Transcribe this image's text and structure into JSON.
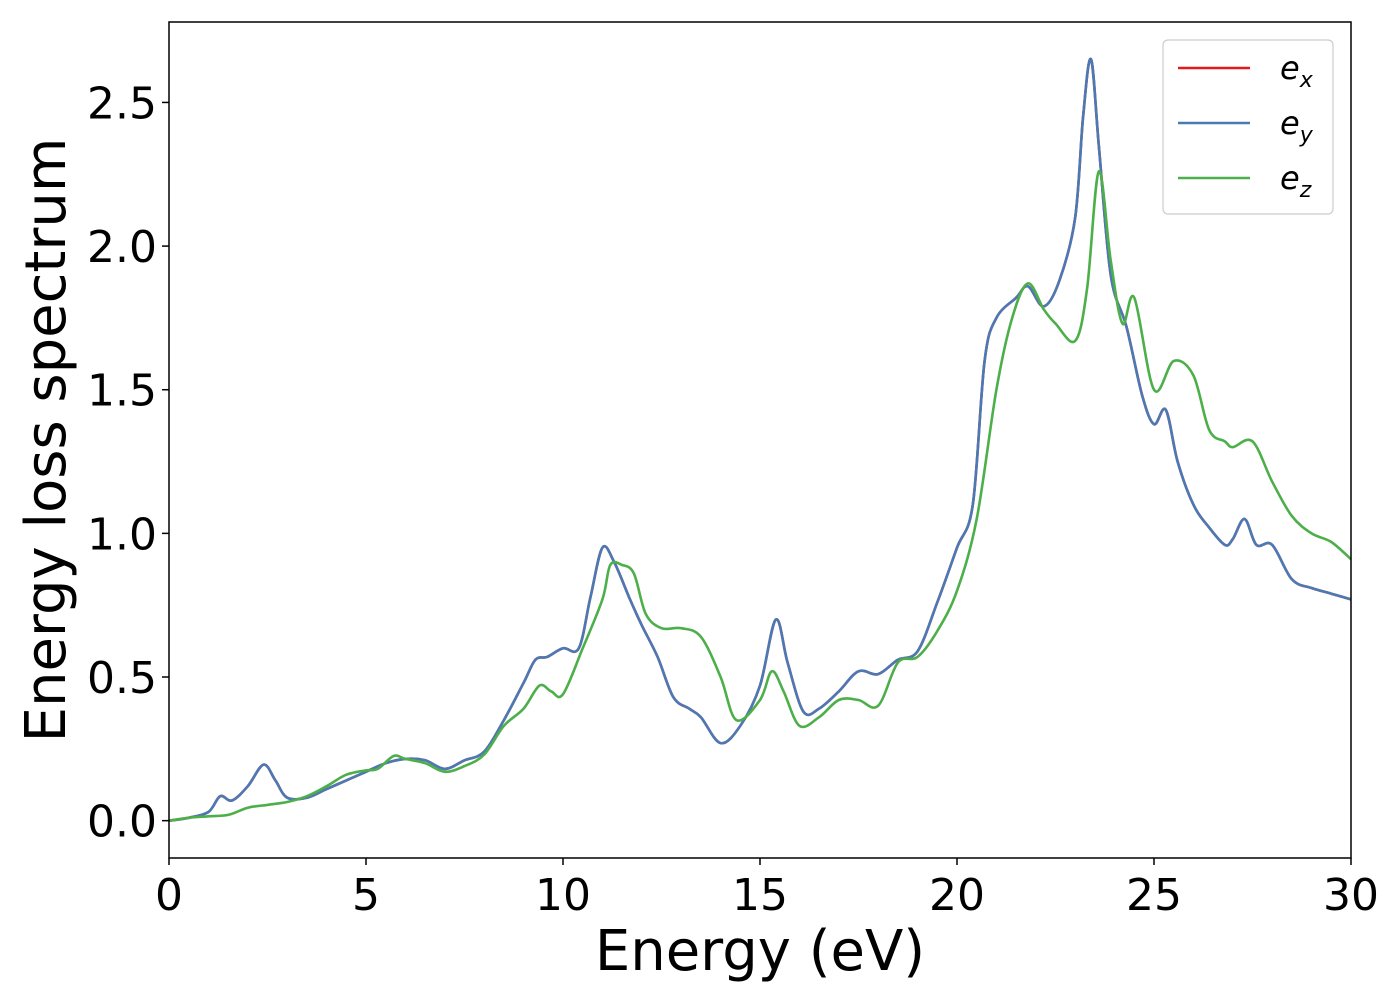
{
  "chart_data": {
    "type": "line",
    "xlabel": "Energy (eV)",
    "ylabel": "Energy loss spectrum",
    "xlim": [
      0,
      30
    ],
    "ylim": [
      -0.13,
      2.78
    ],
    "x_ticks": [
      0,
      5,
      10,
      15,
      20,
      25,
      30
    ],
    "x_tick_labels": [
      "0",
      "5",
      "10",
      "15",
      "20",
      "25",
      "30"
    ],
    "y_ticks": [
      0.0,
      0.5,
      1.0,
      1.5,
      2.0,
      2.5
    ],
    "y_tick_labels": [
      "0.0",
      "0.5",
      "1.0",
      "1.5",
      "2.0",
      "2.5"
    ],
    "grid": false,
    "legend_position": "top-right",
    "series": [
      {
        "name": "e_x",
        "legend_base": "e",
        "legend_sub": "x",
        "color": "#e41a1c",
        "points": [
          [
            0,
            0.0
          ],
          [
            0.5,
            0.01
          ],
          [
            1.0,
            0.03
          ],
          [
            1.3,
            0.085
          ],
          [
            1.6,
            0.07
          ],
          [
            2.0,
            0.12
          ],
          [
            2.4,
            0.195
          ],
          [
            2.7,
            0.14
          ],
          [
            3.0,
            0.08
          ],
          [
            3.5,
            0.08
          ],
          [
            4.0,
            0.11
          ],
          [
            4.5,
            0.14
          ],
          [
            5.0,
            0.17
          ],
          [
            5.5,
            0.2
          ],
          [
            6.0,
            0.215
          ],
          [
            6.5,
            0.21
          ],
          [
            7.0,
            0.18
          ],
          [
            7.5,
            0.21
          ],
          [
            8.0,
            0.24
          ],
          [
            8.5,
            0.35
          ],
          [
            9.0,
            0.48
          ],
          [
            9.3,
            0.56
          ],
          [
            9.6,
            0.57
          ],
          [
            10.0,
            0.6
          ],
          [
            10.4,
            0.6
          ],
          [
            10.7,
            0.78
          ],
          [
            11.0,
            0.95
          ],
          [
            11.3,
            0.9
          ],
          [
            11.7,
            0.77
          ],
          [
            12.0,
            0.68
          ],
          [
            12.4,
            0.57
          ],
          [
            12.8,
            0.43
          ],
          [
            13.2,
            0.39
          ],
          [
            13.5,
            0.36
          ],
          [
            14.0,
            0.27
          ],
          [
            14.5,
            0.33
          ],
          [
            15.0,
            0.47
          ],
          [
            15.4,
            0.7
          ],
          [
            15.7,
            0.55
          ],
          [
            16.1,
            0.38
          ],
          [
            16.5,
            0.39
          ],
          [
            17.0,
            0.45
          ],
          [
            17.5,
            0.52
          ],
          [
            18.0,
            0.51
          ],
          [
            18.5,
            0.56
          ],
          [
            19.0,
            0.59
          ],
          [
            19.5,
            0.76
          ],
          [
            20.0,
            0.95
          ],
          [
            20.4,
            1.1
          ],
          [
            20.7,
            1.6
          ],
          [
            21.0,
            1.75
          ],
          [
            21.5,
            1.82
          ],
          [
            21.8,
            1.86
          ],
          [
            22.2,
            1.79
          ],
          [
            22.6,
            1.88
          ],
          [
            23.0,
            2.1
          ],
          [
            23.2,
            2.45
          ],
          [
            23.4,
            2.65
          ],
          [
            23.6,
            2.35
          ],
          [
            23.9,
            1.9
          ],
          [
            24.3,
            1.72
          ],
          [
            24.7,
            1.48
          ],
          [
            25.0,
            1.38
          ],
          [
            25.3,
            1.43
          ],
          [
            25.6,
            1.25
          ],
          [
            26.0,
            1.1
          ],
          [
            26.4,
            1.02
          ],
          [
            26.8,
            0.96
          ],
          [
            27.0,
            0.98
          ],
          [
            27.3,
            1.05
          ],
          [
            27.6,
            0.96
          ],
          [
            28.0,
            0.96
          ],
          [
            28.5,
            0.84
          ],
          [
            29.0,
            0.81
          ],
          [
            29.5,
            0.79
          ],
          [
            30.0,
            0.77
          ]
        ]
      },
      {
        "name": "e_y",
        "legend_base": "e",
        "legend_sub": "y",
        "color": "#4a7ab5",
        "points": [
          [
            0,
            0.0
          ],
          [
            0.5,
            0.01
          ],
          [
            1.0,
            0.03
          ],
          [
            1.3,
            0.085
          ],
          [
            1.6,
            0.07
          ],
          [
            2.0,
            0.12
          ],
          [
            2.4,
            0.195
          ],
          [
            2.7,
            0.14
          ],
          [
            3.0,
            0.08
          ],
          [
            3.5,
            0.08
          ],
          [
            4.0,
            0.11
          ],
          [
            4.5,
            0.14
          ],
          [
            5.0,
            0.17
          ],
          [
            5.5,
            0.2
          ],
          [
            6.0,
            0.215
          ],
          [
            6.5,
            0.21
          ],
          [
            7.0,
            0.18
          ],
          [
            7.5,
            0.21
          ],
          [
            8.0,
            0.24
          ],
          [
            8.5,
            0.35
          ],
          [
            9.0,
            0.48
          ],
          [
            9.3,
            0.56
          ],
          [
            9.6,
            0.57
          ],
          [
            10.0,
            0.6
          ],
          [
            10.4,
            0.6
          ],
          [
            10.7,
            0.78
          ],
          [
            11.0,
            0.95
          ],
          [
            11.3,
            0.9
          ],
          [
            11.7,
            0.77
          ],
          [
            12.0,
            0.68
          ],
          [
            12.4,
            0.57
          ],
          [
            12.8,
            0.43
          ],
          [
            13.2,
            0.39
          ],
          [
            13.5,
            0.36
          ],
          [
            14.0,
            0.27
          ],
          [
            14.5,
            0.33
          ],
          [
            15.0,
            0.47
          ],
          [
            15.4,
            0.7
          ],
          [
            15.7,
            0.55
          ],
          [
            16.1,
            0.38
          ],
          [
            16.5,
            0.39
          ],
          [
            17.0,
            0.45
          ],
          [
            17.5,
            0.52
          ],
          [
            18.0,
            0.51
          ],
          [
            18.5,
            0.56
          ],
          [
            19.0,
            0.59
          ],
          [
            19.5,
            0.76
          ],
          [
            20.0,
            0.95
          ],
          [
            20.4,
            1.1
          ],
          [
            20.7,
            1.6
          ],
          [
            21.0,
            1.75
          ],
          [
            21.5,
            1.82
          ],
          [
            21.8,
            1.86
          ],
          [
            22.2,
            1.79
          ],
          [
            22.6,
            1.88
          ],
          [
            23.0,
            2.1
          ],
          [
            23.2,
            2.45
          ],
          [
            23.4,
            2.65
          ],
          [
            23.6,
            2.35
          ],
          [
            23.9,
            1.9
          ],
          [
            24.3,
            1.72
          ],
          [
            24.7,
            1.48
          ],
          [
            25.0,
            1.38
          ],
          [
            25.3,
            1.43
          ],
          [
            25.6,
            1.25
          ],
          [
            26.0,
            1.1
          ],
          [
            26.4,
            1.02
          ],
          [
            26.8,
            0.96
          ],
          [
            27.0,
            0.98
          ],
          [
            27.3,
            1.05
          ],
          [
            27.6,
            0.96
          ],
          [
            28.0,
            0.96
          ],
          [
            28.5,
            0.84
          ],
          [
            29.0,
            0.81
          ],
          [
            29.5,
            0.79
          ],
          [
            30.0,
            0.77
          ]
        ]
      },
      {
        "name": "e_z",
        "legend_base": "e",
        "legend_sub": "z",
        "color": "#4daf4a",
        "points": [
          [
            0,
            0.0
          ],
          [
            0.5,
            0.01
          ],
          [
            1.0,
            0.015
          ],
          [
            1.5,
            0.02
          ],
          [
            2.0,
            0.045
          ],
          [
            2.5,
            0.055
          ],
          [
            3.0,
            0.065
          ],
          [
            3.5,
            0.085
          ],
          [
            4.0,
            0.12
          ],
          [
            4.5,
            0.16
          ],
          [
            5.0,
            0.175
          ],
          [
            5.3,
            0.18
          ],
          [
            5.7,
            0.225
          ],
          [
            6.0,
            0.215
          ],
          [
            6.5,
            0.2
          ],
          [
            7.0,
            0.17
          ],
          [
            7.5,
            0.19
          ],
          [
            8.0,
            0.23
          ],
          [
            8.5,
            0.33
          ],
          [
            9.0,
            0.39
          ],
          [
            9.4,
            0.47
          ],
          [
            9.7,
            0.45
          ],
          [
            10.0,
            0.44
          ],
          [
            10.5,
            0.6
          ],
          [
            11.0,
            0.77
          ],
          [
            11.2,
            0.89
          ],
          [
            11.5,
            0.89
          ],
          [
            11.8,
            0.86
          ],
          [
            12.1,
            0.72
          ],
          [
            12.5,
            0.67
          ],
          [
            13.0,
            0.67
          ],
          [
            13.5,
            0.64
          ],
          [
            14.0,
            0.5
          ],
          [
            14.4,
            0.35
          ],
          [
            15.0,
            0.42
          ],
          [
            15.3,
            0.52
          ],
          [
            15.6,
            0.45
          ],
          [
            16.0,
            0.33
          ],
          [
            16.5,
            0.36
          ],
          [
            17.0,
            0.42
          ],
          [
            17.5,
            0.42
          ],
          [
            18.0,
            0.4
          ],
          [
            18.5,
            0.55
          ],
          [
            19.0,
            0.57
          ],
          [
            19.5,
            0.66
          ],
          [
            20.0,
            0.8
          ],
          [
            20.5,
            1.05
          ],
          [
            21.0,
            1.5
          ],
          [
            21.4,
            1.75
          ],
          [
            21.8,
            1.87
          ],
          [
            22.2,
            1.78
          ],
          [
            22.5,
            1.73
          ],
          [
            23.0,
            1.67
          ],
          [
            23.3,
            1.85
          ],
          [
            23.6,
            2.26
          ],
          [
            23.9,
            1.95
          ],
          [
            24.2,
            1.73
          ],
          [
            24.5,
            1.82
          ],
          [
            25.0,
            1.5
          ],
          [
            25.5,
            1.6
          ],
          [
            26.0,
            1.55
          ],
          [
            26.4,
            1.36
          ],
          [
            26.8,
            1.32
          ],
          [
            27.0,
            1.3
          ],
          [
            27.5,
            1.32
          ],
          [
            28.0,
            1.18
          ],
          [
            28.5,
            1.06
          ],
          [
            29.0,
            1.0
          ],
          [
            29.5,
            0.97
          ],
          [
            30.0,
            0.91
          ]
        ]
      }
    ]
  }
}
